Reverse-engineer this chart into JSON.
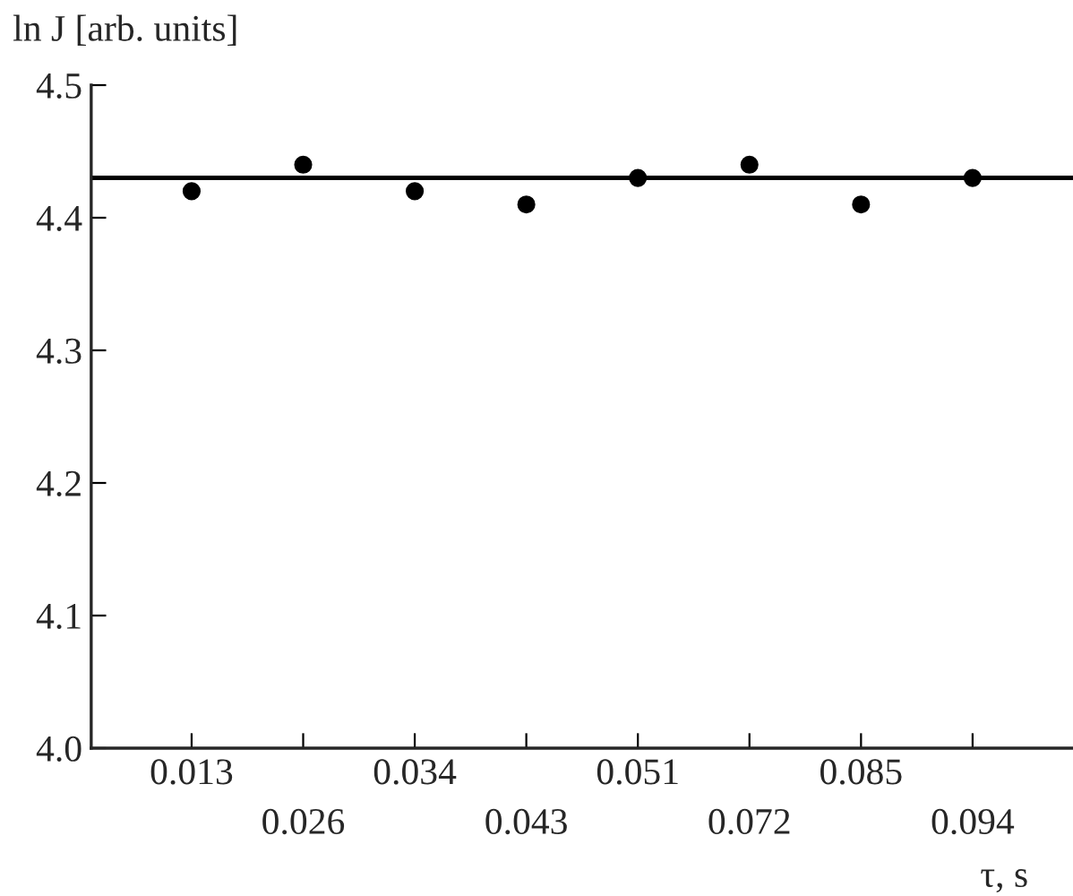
{
  "chart_data": {
    "type": "scatter",
    "xlabel": "τ, s",
    "ylabel": "ln J [arb. units]",
    "categories": [
      "0.013",
      "0.026",
      "0.034",
      "0.043",
      "0.051",
      "0.072",
      "0.085",
      "0.094"
    ],
    "series": [
      {
        "color": "#000000",
        "values": [
          4.42,
          4.44,
          4.42,
          4.41,
          4.43,
          4.44,
          4.41,
          4.43
        ]
      }
    ],
    "ylim": [
      4.0,
      4.5
    ],
    "yticks": [
      {
        "value": 4.0,
        "label": "4.0"
      },
      4.1,
      4.2,
      4.3,
      4.4,
      4.5
    ],
    "ref_lines": [
      {
        "axis": "y",
        "value": 4.43,
        "color": "#000000",
        "line_style": "solid"
      }
    ],
    "marker": "circle",
    "grid": false,
    "legend": false
  }
}
